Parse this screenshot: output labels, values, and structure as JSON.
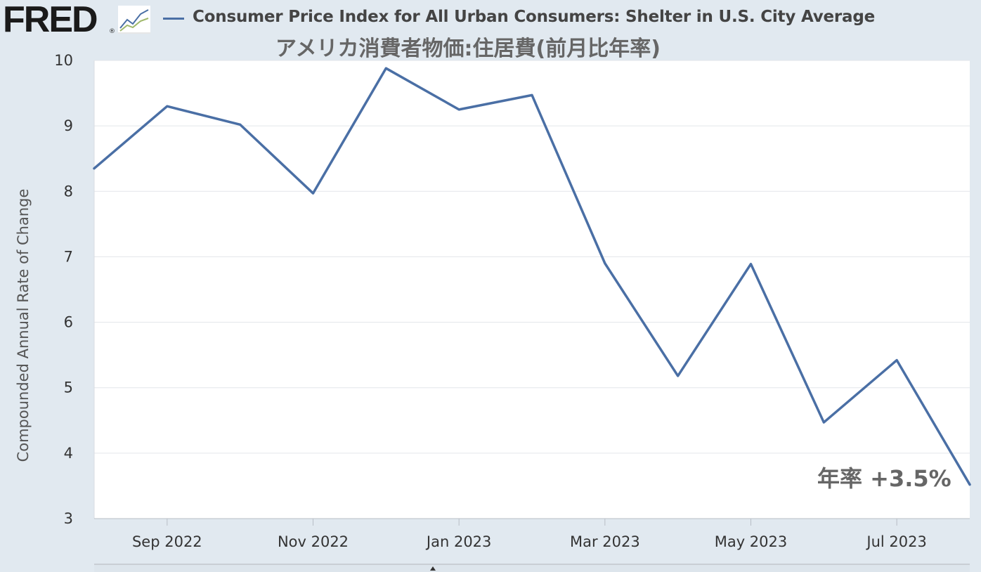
{
  "header": {
    "logo_text": "FRED",
    "logo_reg": "®",
    "logo_icon": "line-chart-icon",
    "series_title": "Consumer Price Index for All Urban Consumers: Shelter in U.S. City Average",
    "subtitle": "アメリカ消費者物価:住居費(前月比年率)",
    "series_color": "#4a6fa5"
  },
  "annotation": "年率 +3.5%",
  "chart_data": {
    "type": "line",
    "title": "Consumer Price Index for All Urban Consumers: Shelter in U.S. City Average",
    "subtitle": "アメリカ消費者物価:住居費(前月比年率)",
    "xlabel": "",
    "ylabel": "Compounded Annual Rate of Change",
    "ylim": [
      3,
      10
    ],
    "yticks": [
      "3",
      "4",
      "5",
      "6",
      "7",
      "8",
      "9",
      "10"
    ],
    "xticks": [
      "Sep 2022",
      "Nov 2022",
      "Jan 2023",
      "Mar 2023",
      "May 2023",
      "Jul 2023"
    ],
    "grid": true,
    "series": [
      {
        "name": "Consumer Price Index for All Urban Consumers: Shelter in U.S. City Average",
        "color": "#4a6fa5",
        "x": [
          "2022-08",
          "2022-09",
          "2022-10",
          "2022-11",
          "2022-12",
          "2023-01",
          "2023-02",
          "2023-03",
          "2023-04",
          "2023-05",
          "2023-06",
          "2023-07",
          "2023-08"
        ],
        "values": [
          8.35,
          9.3,
          9.02,
          7.97,
          9.88,
          9.25,
          9.47,
          6.9,
          5.18,
          6.89,
          4.47,
          5.42,
          3.52
        ]
      }
    ]
  }
}
